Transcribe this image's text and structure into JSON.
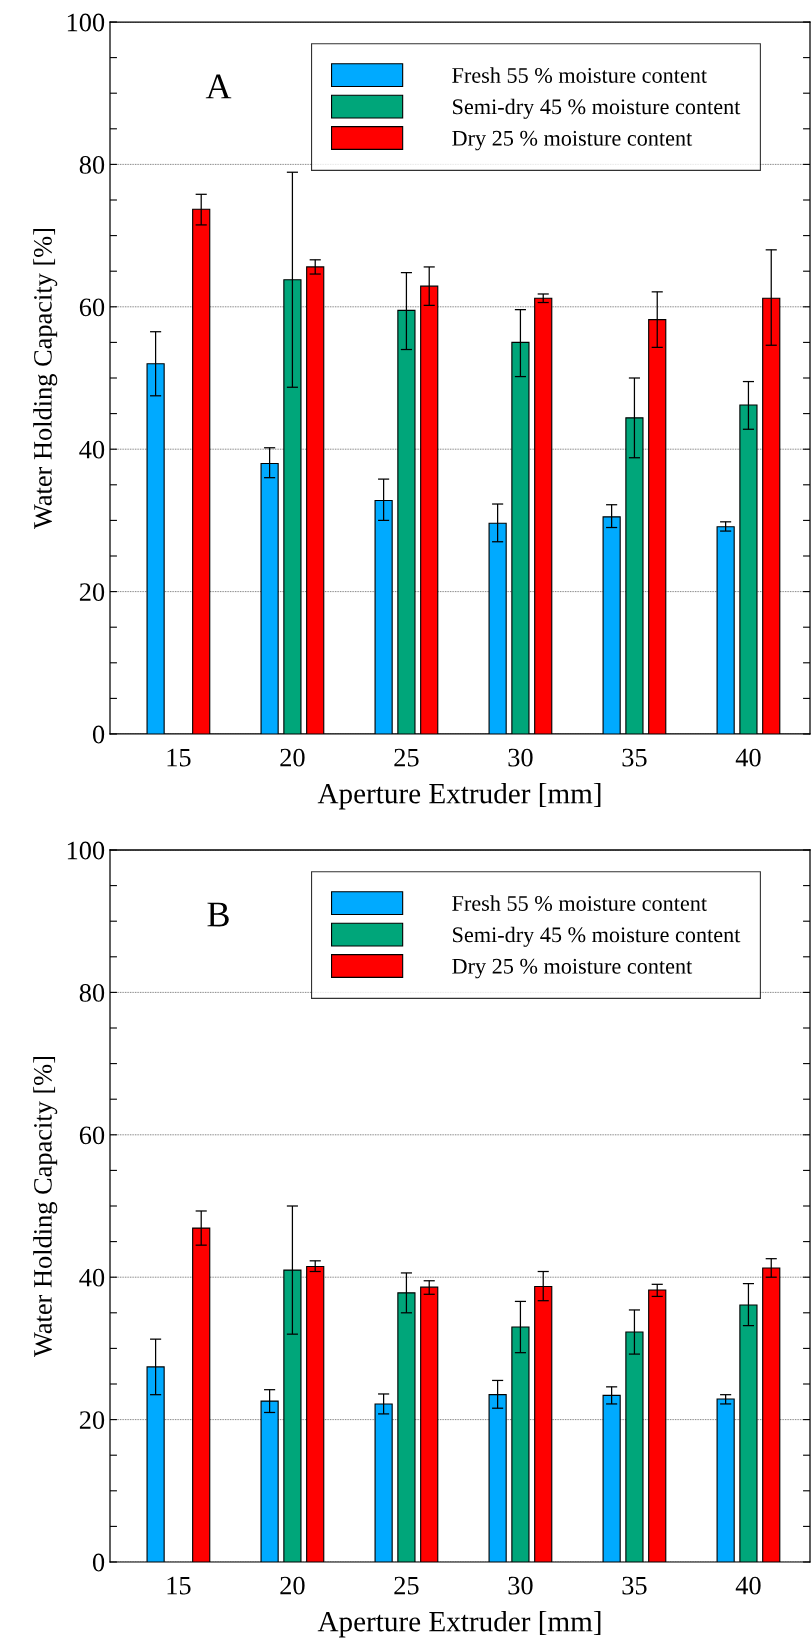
{
  "chart_data": [
    {
      "type": "bar",
      "title": "A",
      "xlabel": "Aperture Extruder [mm]",
      "ylabel": "Water Holding Capacity [%]",
      "categories": [
        "15",
        "20",
        "25",
        "30",
        "35",
        "40"
      ],
      "series": [
        {
          "name": "Fresh 55 % moisture content",
          "color": "#00aaff",
          "values": [
            52,
            38,
            32.8,
            29.6,
            30.5,
            29.1
          ],
          "errors": [
            [
              47.5,
              56.5
            ],
            [
              36,
              40.2
            ],
            [
              30,
              35.8
            ],
            [
              27,
              32.3
            ],
            [
              29,
              32.2
            ],
            [
              28.5,
              29.8
            ]
          ]
        },
        {
          "name": "Semi-dry 45 % moisture content",
          "color": "#00a67a",
          "values": [
            null,
            63.8,
            59.5,
            55,
            44.4,
            46.2
          ],
          "errors": [
            null,
            [
              48.7,
              78.9
            ],
            [
              54,
              64.8
            ],
            [
              50.2,
              59.6
            ],
            [
              38.8,
              50
            ],
            [
              42.8,
              49.5
            ]
          ]
        },
        {
          "name": "Dry 25 % moisture content",
          "color": "#ff0000",
          "values": [
            73.7,
            65.6,
            62.9,
            61.2,
            58.2,
            61.2
          ],
          "errors": [
            [
              71.5,
              75.8
            ],
            [
              64.6,
              66.6
            ],
            [
              60.2,
              65.6
            ],
            [
              60.6,
              61.8
            ],
            [
              54.3,
              62.1
            ],
            [
              54.6,
              68
            ]
          ]
        }
      ],
      "ylim": [
        0,
        100
      ],
      "yticks": [
        0,
        {
          "value": 5,
          "label": null
        },
        {
          "value": 10,
          "label": null
        },
        {
          "value": 15,
          "label": null
        },
        20,
        {
          "value": 25,
          "label": null
        },
        {
          "value": 30,
          "label": null
        },
        {
          "value": 35,
          "label": null
        },
        40,
        {
          "value": 45,
          "label": null
        },
        {
          "value": 50,
          "label": null
        },
        {
          "value": 55,
          "label": null
        },
        60,
        {
          "value": 65,
          "label": null
        },
        {
          "value": 70,
          "label": null
        },
        {
          "value": 75,
          "label": null
        },
        80,
        {
          "value": 85,
          "label": null
        },
        {
          "value": 90,
          "label": null
        },
        {
          "value": 95,
          "label": null
        },
        100
      ],
      "grid": "y",
      "legend": "top right"
    },
    {
      "type": "bar",
      "title": "B",
      "xlabel": "Aperture Extruder [mm]",
      "ylabel": "Water Holding Capacity [%]",
      "categories": [
        "15",
        "20",
        "25",
        "30",
        "35",
        "40"
      ],
      "series": [
        {
          "name": "Fresh 55 % moisture content",
          "color": "#00aaff",
          "values": [
            27.4,
            22.6,
            22.2,
            23.5,
            23.4,
            22.9
          ],
          "errors": [
            [
              23.5,
              31.3
            ],
            [
              21,
              24.2
            ],
            [
              20.8,
              23.6
            ],
            [
              21.6,
              25.5
            ],
            [
              22.2,
              24.6
            ],
            [
              22.2,
              23.5
            ]
          ]
        },
        {
          "name": "Semi-dry 45 % moisture content",
          "color": "#00a67a",
          "values": [
            null,
            41,
            37.8,
            33,
            32.3,
            36.1
          ],
          "errors": [
            null,
            [
              32,
              50
            ],
            [
              35,
              40.6
            ],
            [
              29.4,
              36.6
            ],
            [
              29.2,
              35.4
            ],
            [
              33.2,
              39.1
            ]
          ]
        },
        {
          "name": "Dry 25 % moisture content",
          "color": "#ff0000",
          "values": [
            46.9,
            41.5,
            38.6,
            38.7,
            38.2,
            41.3
          ],
          "errors": [
            [
              44.5,
              49.3
            ],
            [
              40.8,
              42.3
            ],
            [
              37.6,
              39.5
            ],
            [
              36.7,
              40.8
            ],
            [
              37.3,
              39
            ],
            [
              40,
              42.6
            ]
          ]
        }
      ],
      "ylim": [
        0,
        100
      ],
      "yticks": [
        0,
        {
          "value": 5,
          "label": null
        },
        {
          "value": 10,
          "label": null
        },
        {
          "value": 15,
          "label": null
        },
        20,
        {
          "value": 25,
          "label": null
        },
        {
          "value": 30,
          "label": null
        },
        {
          "value": 35,
          "label": null
        },
        40,
        {
          "value": 45,
          "label": null
        },
        {
          "value": 50,
          "label": null
        },
        {
          "value": 55,
          "label": null
        },
        60,
        {
          "value": 65,
          "label": null
        },
        {
          "value": 70,
          "label": null
        },
        {
          "value": 75,
          "label": null
        },
        80,
        {
          "value": 85,
          "label": null
        },
        {
          "value": 90,
          "label": null
        },
        {
          "value": 95,
          "label": null
        },
        100
      ],
      "grid": "y",
      "legend": "top right"
    }
  ]
}
